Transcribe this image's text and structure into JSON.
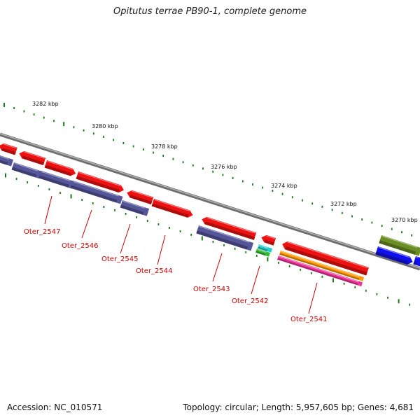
{
  "title": "Opitutus terrae PB90-1, complete genome",
  "footer": {
    "accession": "Accession: NC_010571",
    "summary": "Topology: circular; Length: 5,957,605 bp; Genes: 4,681"
  },
  "colors": {
    "backbone": "#8a8a8a",
    "tick": "#1a7a1a",
    "label": "#cc0000",
    "red": "#ee1111",
    "purple": "#55559a",
    "blue": "#1010ee",
    "olive": "#6b8e23",
    "orange": "#ff9900",
    "pink": "#ee3399",
    "cyan": "#22cccc",
    "green": "#33bb33"
  },
  "scale_labels": [
    "3282 kbp",
    "3280 kbp",
    "3278 kbp",
    "3276 kbp",
    "3274 kbp",
    "3272 kbp",
    "3270 kbp"
  ],
  "gene_labels": [
    "Oter_2547",
    "Oter_2546",
    "Oter_2545",
    "Oter_2544",
    "Oter_2543",
    "Oter_2542",
    "Oter_2541"
  ]
}
